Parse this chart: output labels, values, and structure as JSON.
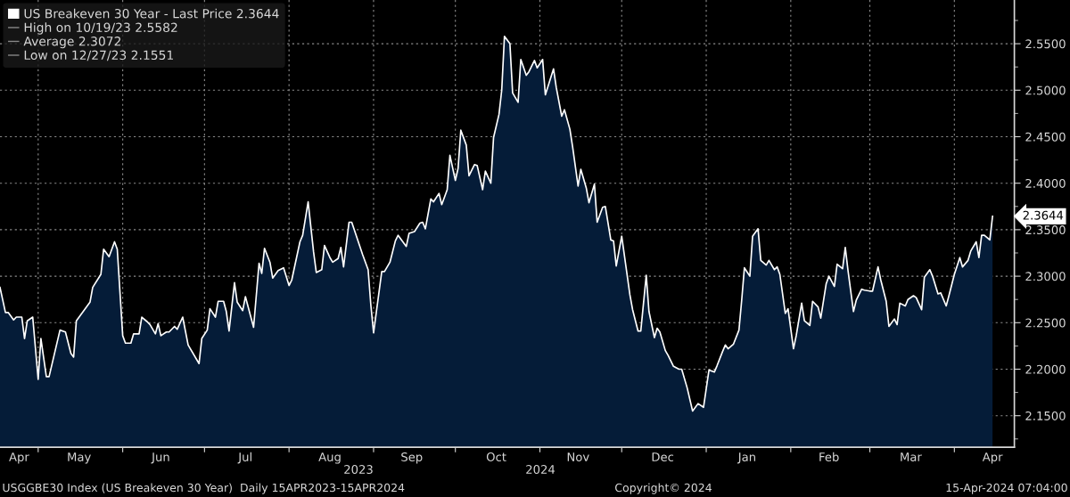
{
  "chart_data": {
    "type": "area",
    "series": [
      {
        "name": "US Breakeven 30 Year - Last Price 2.3644",
        "color": "#ffffff",
        "x": [
          "2023-04-17",
          "2023-04-19",
          "2023-04-20",
          "2023-04-22",
          "2023-04-23",
          "2023-04-25",
          "2023-04-26",
          "2023-04-27",
          "2023-04-29",
          "2023-05-01",
          "2023-05-02",
          "2023-05-04",
          "2023-05-05",
          "2023-05-09",
          "2023-05-11",
          "2023-05-13",
          "2023-05-14",
          "2023-05-15",
          "2023-05-20",
          "2023-05-21",
          "2023-05-24",
          "2023-05-25",
          "2023-05-27",
          "2023-05-29",
          "2023-05-30",
          "2023-06-01",
          "2023-06-02",
          "2023-06-04",
          "2023-06-05",
          "2023-06-07",
          "2023-06-08",
          "2023-06-10",
          "2023-06-11",
          "2023-06-13",
          "2023-06-14",
          "2023-06-15",
          "2023-06-17",
          "2023-06-18",
          "2023-06-20",
          "2023-06-21",
          "2023-06-23",
          "2023-06-25",
          "2023-06-29",
          "2023-06-30",
          "2023-07-02",
          "2023-07-03",
          "2023-07-05",
          "2023-07-06",
          "2023-07-08",
          "2023-07-09",
          "2023-07-10",
          "2023-07-12",
          "2023-07-13",
          "2023-07-15",
          "2023-07-16",
          "2023-07-18",
          "2023-07-19",
          "2023-07-21",
          "2023-07-22",
          "2023-07-23",
          "2023-07-25",
          "2023-07-26",
          "2023-07-28",
          "2023-07-30",
          "2023-08-01",
          "2023-08-02",
          "2023-08-05",
          "2023-08-06",
          "2023-08-08",
          "2023-08-10",
          "2023-08-11",
          "2023-08-13",
          "2023-08-14",
          "2023-08-16",
          "2023-08-17",
          "2023-08-19",
          "2023-08-20",
          "2023-08-21",
          "2023-08-23",
          "2023-08-24",
          "2023-08-28",
          "2023-08-30",
          "2023-08-31",
          "2023-09-01",
          "2023-09-02",
          "2023-09-04",
          "2023-09-05",
          "2023-09-07",
          "2023-09-09",
          "2023-09-10",
          "2023-09-13",
          "2023-09-14",
          "2023-09-16",
          "2023-09-18",
          "2023-09-19",
          "2023-09-20",
          "2023-09-22",
          "2023-09-23",
          "2023-09-25",
          "2023-09-26",
          "2023-09-28",
          "2023-09-29",
          "2023-10-01",
          "2023-10-02",
          "2023-10-03",
          "2023-10-05",
          "2023-10-06",
          "2023-10-08",
          "2023-10-09",
          "2023-10-11",
          "2023-10-12",
          "2023-10-14",
          "2023-10-15",
          "2023-10-17",
          "2023-10-18",
          "2023-10-19",
          "2023-10-21",
          "2023-10-22",
          "2023-10-24",
          "2023-10-25",
          "2023-10-27",
          "2023-10-28",
          "2023-10-30",
          "2023-10-31",
          "2023-11-02",
          "2023-11-03",
          "2023-11-06",
          "2023-11-07",
          "2023-11-09",
          "2023-11-10",
          "2023-11-12",
          "2023-11-13",
          "2023-11-15",
          "2023-11-16",
          "2023-11-18",
          "2023-11-19",
          "2023-11-21",
          "2023-11-22",
          "2023-11-24",
          "2023-11-25",
          "2023-11-27",
          "2023-11-28",
          "2023-11-29",
          "2023-12-01",
          "2023-12-04",
          "2023-12-05",
          "2023-12-07",
          "2023-12-08",
          "2023-12-10",
          "2023-12-11",
          "2023-12-13",
          "2023-12-14",
          "2023-12-15",
          "2023-12-17",
          "2023-12-18",
          "2023-12-20",
          "2023-12-22",
          "2023-12-23",
          "2023-12-25",
          "2023-12-27",
          "2023-12-29",
          "2023-12-31",
          "2024-01-02",
          "2024-01-04",
          "2024-01-05",
          "2024-01-07",
          "2024-01-08",
          "2024-01-09",
          "2024-01-11",
          "2024-01-13",
          "2024-01-14",
          "2024-01-15",
          "2024-01-17",
          "2024-01-18",
          "2024-01-20",
          "2024-01-21",
          "2024-01-23",
          "2024-01-24",
          "2024-01-26",
          "2024-01-27",
          "2024-01-28",
          "2024-01-30",
          "2024-01-31",
          "2024-02-02",
          "2024-02-03",
          "2024-02-05",
          "2024-02-06",
          "2024-02-08",
          "2024-02-09",
          "2024-02-11",
          "2024-02-12",
          "2024-02-14",
          "2024-02-15",
          "2024-02-17",
          "2024-02-18",
          "2024-02-20",
          "2024-02-21",
          "2024-02-22",
          "2024-02-24",
          "2024-02-25",
          "2024-02-27",
          "2024-02-28",
          "2024-03-01",
          "2024-03-02",
          "2024-03-04",
          "2024-03-05",
          "2024-03-07",
          "2024-03-08",
          "2024-03-10",
          "2024-03-11",
          "2024-03-12",
          "2024-03-14",
          "2024-03-15",
          "2024-03-17",
          "2024-03-18",
          "2024-03-20",
          "2024-03-21",
          "2024-03-23",
          "2024-03-24",
          "2024-03-26",
          "2024-03-27",
          "2024-03-29",
          "2024-03-30",
          "2024-04-01",
          "2024-04-03",
          "2024-04-04",
          "2024-04-06",
          "2024-04-07",
          "2024-04-09",
          "2024-04-10",
          "2024-04-11",
          "2024-04-12",
          "2024-04-14",
          "2024-04-15"
        ],
        "values": [
          2.288,
          2.261,
          2.261,
          2.253,
          2.256,
          2.256,
          2.233,
          2.252,
          2.256,
          2.189,
          2.233,
          2.192,
          2.192,
          2.242,
          2.24,
          2.217,
          2.213,
          2.252,
          2.272,
          2.288,
          2.302,
          2.329,
          2.321,
          2.337,
          2.329,
          2.236,
          2.228,
          2.228,
          2.238,
          2.238,
          2.256,
          2.251,
          2.248,
          2.238,
          2.249,
          2.236,
          2.24,
          2.24,
          2.246,
          2.243,
          2.256,
          2.226,
          2.206,
          2.233,
          2.242,
          2.265,
          2.256,
          2.273,
          2.273,
          2.262,
          2.241,
          2.293,
          2.272,
          2.263,
          2.278,
          2.256,
          2.245,
          2.314,
          2.303,
          2.33,
          2.315,
          2.298,
          2.306,
          2.309,
          2.29,
          2.296,
          2.337,
          2.344,
          2.38,
          2.326,
          2.304,
          2.307,
          2.333,
          2.32,
          2.315,
          2.319,
          2.331,
          2.31,
          2.358,
          2.358,
          2.323,
          2.307,
          2.269,
          2.239,
          2.261,
          2.305,
          2.305,
          2.315,
          2.338,
          2.344,
          2.332,
          2.346,
          2.348,
          2.357,
          2.358,
          2.351,
          2.383,
          2.38,
          2.389,
          2.377,
          2.393,
          2.43,
          2.403,
          2.416,
          2.457,
          2.441,
          2.408,
          2.42,
          2.419,
          2.393,
          2.413,
          2.4,
          2.449,
          2.474,
          2.5,
          2.558,
          2.55,
          2.497,
          2.487,
          2.533,
          2.516,
          2.52,
          2.532,
          2.524,
          2.533,
          2.495,
          2.523,
          2.503,
          2.472,
          2.479,
          2.458,
          2.439,
          2.397,
          2.415,
          2.395,
          2.379,
          2.399,
          2.358,
          2.374,
          2.375,
          2.339,
          2.338,
          2.311,
          2.343,
          2.28,
          2.264,
          2.241,
          2.241,
          2.301,
          2.262,
          2.234,
          2.244,
          2.24,
          2.22,
          2.215,
          2.203,
          2.2,
          2.2,
          2.18,
          2.155,
          2.163,
          2.159,
          2.199,
          2.197,
          2.204,
          2.219,
          2.226,
          2.222,
          2.227,
          2.242,
          2.274,
          2.309,
          2.3,
          2.343,
          2.351,
          2.317,
          2.312,
          2.317,
          2.307,
          2.31,
          2.302,
          2.26,
          2.265,
          2.222,
          2.236,
          2.271,
          2.252,
          2.247,
          2.273,
          2.267,
          2.255,
          2.292,
          2.3,
          2.289,
          2.313,
          2.308,
          2.331,
          2.306,
          2.262,
          2.274,
          2.286,
          2.285,
          2.284,
          2.284,
          2.31,
          2.296,
          2.273,
          2.246,
          2.254,
          2.248,
          2.271,
          2.268,
          2.275,
          2.279,
          2.277,
          2.264,
          2.299,
          2.307,
          2.3,
          2.281,
          2.282,
          2.268,
          2.279,
          2.302,
          2.32,
          2.31,
          2.317,
          2.327,
          2.337,
          2.32,
          2.344,
          2.344,
          2.339,
          2.3644
        ]
      }
    ],
    "xlim": [
      "2023-04-17",
      "2024-04-23"
    ],
    "xticks": [
      {
        "value": "2023-04-24",
        "label": "Apr"
      },
      {
        "value": "2023-05-01",
        "label": null
      },
      {
        "value": "2023-05-16",
        "label": "May"
      },
      {
        "value": "2023-06-01",
        "label": null
      },
      {
        "value": "2023-06-15",
        "label": "Jun"
      },
      {
        "value": "2023-07-01",
        "label": null
      },
      {
        "value": "2023-07-16",
        "label": "Jul"
      },
      {
        "value": "2023-08-01",
        "label": null
      },
      {
        "value": "2023-08-16",
        "label": "Aug"
      },
      {
        "value": "2023-09-01",
        "label": null
      },
      {
        "value": "2023-09-15",
        "label": "Sep"
      },
      {
        "value": "2023-10-01",
        "label": null
      },
      {
        "value": "2023-10-16",
        "label": "Oct"
      },
      {
        "value": "2023-11-01",
        "label": null
      },
      {
        "value": "2023-11-15",
        "label": "Nov"
      },
      {
        "value": "2023-12-01",
        "label": null
      },
      {
        "value": "2023-12-16",
        "label": "Dec"
      },
      {
        "value": "2024-01-01",
        "label": null
      },
      {
        "value": "2024-01-16",
        "label": "Jan"
      },
      {
        "value": "2024-02-01",
        "label": null
      },
      {
        "value": "2024-02-15",
        "label": "Feb"
      },
      {
        "value": "2024-03-01",
        "label": null
      },
      {
        "value": "2024-03-16",
        "label": "Mar"
      },
      {
        "value": "2024-04-01",
        "label": null
      },
      {
        "value": "2024-04-15",
        "label": "Apr"
      }
    ],
    "ylim": [
      2.116,
      2.597
    ],
    "yticks": [
      {
        "value": 2.125,
        "label": null
      },
      {
        "value": 2.15,
        "label": "2.1500"
      },
      {
        "value": 2.175,
        "label": null
      },
      {
        "value": 2.2,
        "label": "2.2000"
      },
      {
        "value": 2.225,
        "label": null
      },
      {
        "value": 2.25,
        "label": "2.2500"
      },
      {
        "value": 2.275,
        "label": null
      },
      {
        "value": 2.3,
        "label": "2.3000"
      },
      {
        "value": 2.325,
        "label": null
      },
      {
        "value": 2.35,
        "label": "2.3500"
      },
      {
        "value": 2.375,
        "label": null
      },
      {
        "value": 2.4,
        "label": "2.4000"
      },
      {
        "value": 2.425,
        "label": null
      },
      {
        "value": 2.45,
        "label": "2.4500"
      },
      {
        "value": 2.475,
        "label": null
      },
      {
        "value": 2.5,
        "label": "2.5000"
      },
      {
        "value": 2.525,
        "label": null
      },
      {
        "value": 2.55,
        "label": "2.5500"
      },
      {
        "value": 2.575,
        "label": null
      }
    ],
    "grid": true,
    "legend": "top left",
    "annotations": [
      "High on 10/19/23 2.5582",
      "Average 2.3072",
      "Low on 12/27/23 2.1551",
      "USGGBE30 Index (US Breakeven 30 Year)  Daily 15APR2023-15APR2024",
      "Copyright© 2024",
      "15-Apr-2024 07:04:00",
      "2023",
      "2024",
      {
        "text": "2.3644",
        "x": "2024-04-15",
        "y": 2.3644
      }
    ]
  }
}
